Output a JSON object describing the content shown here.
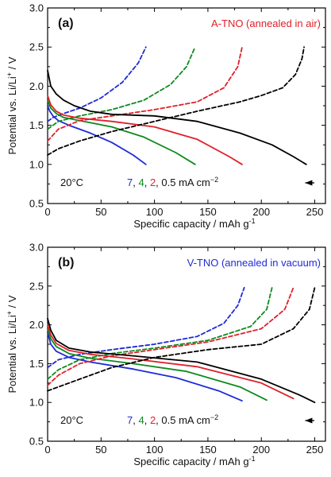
{
  "colors": {
    "black": "#000000",
    "blue": "#1f2bd8",
    "green": "#0e8a1e",
    "red": "#e0202a"
  },
  "chart_data": [
    {
      "type": "line",
      "panel_label": "(a)",
      "title": "A-TNO (annealed in air)",
      "title_color": "#e0202a",
      "xlabel": "Specific capacity / mAh g",
      "xlabel_sup": "-1",
      "ylabel": "Potential vs. Li/Li",
      "ylabel_sup": "+",
      "ylabel_suffix": " / V",
      "xlim": [
        0,
        260
      ],
      "ylim": [
        0.5,
        3.0
      ],
      "xticks": [
        0,
        50,
        100,
        150,
        200,
        250
      ],
      "yticks": [
        0.5,
        1.0,
        1.5,
        2.0,
        2.5,
        3.0
      ],
      "temperature": "20°C",
      "rate_labels": [
        "7",
        "4",
        "2",
        "0.5 mA cm"
      ],
      "rate_sup": "−2",
      "series": [
        {
          "color": "blue",
          "style": "solid",
          "x": [
            0,
            2,
            5,
            10,
            20,
            40,
            60,
            80,
            92
          ],
          "y": [
            1.75,
            1.68,
            1.62,
            1.56,
            1.5,
            1.4,
            1.28,
            1.12,
            1.0
          ]
        },
        {
          "color": "blue",
          "style": "dashed",
          "x": [
            0,
            5,
            15,
            30,
            50,
            70,
            85,
            92
          ],
          "y": [
            1.55,
            1.6,
            1.65,
            1.72,
            1.85,
            2.05,
            2.3,
            2.5
          ]
        },
        {
          "color": "green",
          "style": "solid",
          "x": [
            0,
            3,
            8,
            15,
            30,
            60,
            90,
            120,
            138
          ],
          "y": [
            1.82,
            1.72,
            1.65,
            1.6,
            1.56,
            1.48,
            1.35,
            1.15,
            1.0
          ]
        },
        {
          "color": "green",
          "style": "dashed",
          "x": [
            0,
            10,
            30,
            60,
            90,
            115,
            130,
            138
          ],
          "y": [
            1.45,
            1.55,
            1.62,
            1.7,
            1.82,
            2.02,
            2.25,
            2.5
          ]
        },
        {
          "color": "red",
          "style": "solid",
          "x": [
            0,
            3,
            8,
            15,
            30,
            60,
            100,
            140,
            170,
            182
          ],
          "y": [
            1.88,
            1.76,
            1.68,
            1.63,
            1.59,
            1.55,
            1.48,
            1.32,
            1.1,
            1.0
          ]
        },
        {
          "color": "red",
          "style": "dashed",
          "x": [
            0,
            10,
            30,
            60,
            100,
            140,
            165,
            178,
            182
          ],
          "y": [
            1.3,
            1.45,
            1.56,
            1.62,
            1.7,
            1.8,
            1.98,
            2.25,
            2.5
          ]
        },
        {
          "color": "black",
          "style": "solid",
          "x": [
            0,
            3,
            8,
            15,
            25,
            40,
            60,
            100,
            140,
            180,
            210,
            230,
            242
          ],
          "y": [
            2.2,
            2.0,
            1.9,
            1.82,
            1.75,
            1.68,
            1.64,
            1.62,
            1.55,
            1.4,
            1.25,
            1.1,
            1.0
          ]
        },
        {
          "color": "black",
          "style": "dashed",
          "x": [
            0,
            10,
            30,
            60,
            100,
            140,
            180,
            200,
            220,
            232,
            238,
            240
          ],
          "y": [
            1.12,
            1.2,
            1.3,
            1.42,
            1.55,
            1.68,
            1.8,
            1.88,
            1.98,
            2.15,
            2.35,
            2.5
          ]
        }
      ]
    },
    {
      "type": "line",
      "panel_label": "(b)",
      "title": "V-TNO (annealed in vacuum)",
      "title_color": "#1f2bd8",
      "xlabel": "Specific capacity / mAh g",
      "xlabel_sup": "-1",
      "ylabel": "Potential vs. Li/Li",
      "ylabel_sup": "+",
      "ylabel_suffix": " / V",
      "xlim": [
        0,
        260
      ],
      "ylim": [
        0.5,
        3.0
      ],
      "xticks": [
        0,
        50,
        100,
        150,
        200,
        250
      ],
      "yticks": [
        0.5,
        1.0,
        1.5,
        2.0,
        2.5,
        3.0
      ],
      "temperature": "20°C",
      "rate_labels": [
        "7",
        "4",
        "2",
        "0.5 mA cm"
      ],
      "rate_sup": "−2",
      "series": [
        {
          "color": "blue",
          "style": "solid",
          "x": [
            0,
            3,
            8,
            20,
            40,
            80,
            120,
            160,
            182
          ],
          "y": [
            1.9,
            1.75,
            1.66,
            1.58,
            1.52,
            1.43,
            1.32,
            1.15,
            1.02
          ]
        },
        {
          "color": "blue",
          "style": "dashed",
          "x": [
            0,
            10,
            30,
            60,
            100,
            140,
            165,
            178,
            184
          ],
          "y": [
            1.45,
            1.55,
            1.62,
            1.68,
            1.75,
            1.85,
            2.02,
            2.25,
            2.48
          ]
        },
        {
          "color": "green",
          "style": "solid",
          "x": [
            0,
            3,
            8,
            20,
            40,
            80,
            130,
            180,
            205
          ],
          "y": [
            1.95,
            1.82,
            1.72,
            1.63,
            1.57,
            1.5,
            1.4,
            1.2,
            1.03
          ]
        },
        {
          "color": "green",
          "style": "dashed",
          "x": [
            0,
            10,
            30,
            60,
            100,
            150,
            190,
            205,
            210
          ],
          "y": [
            1.3,
            1.42,
            1.55,
            1.63,
            1.7,
            1.8,
            1.98,
            2.2,
            2.48
          ]
        },
        {
          "color": "red",
          "style": "solid",
          "x": [
            0,
            3,
            8,
            20,
            40,
            80,
            140,
            200,
            230
          ],
          "y": [
            2.0,
            1.87,
            1.76,
            1.67,
            1.62,
            1.56,
            1.46,
            1.25,
            1.05
          ]
        },
        {
          "color": "red",
          "style": "dashed",
          "x": [
            0,
            10,
            30,
            60,
            100,
            150,
            200,
            222,
            230
          ],
          "y": [
            1.22,
            1.35,
            1.5,
            1.6,
            1.68,
            1.78,
            1.95,
            2.2,
            2.48
          ]
        },
        {
          "color": "black",
          "style": "solid",
          "x": [
            0,
            3,
            8,
            20,
            40,
            80,
            140,
            200,
            235,
            250
          ],
          "y": [
            2.08,
            1.93,
            1.8,
            1.7,
            1.65,
            1.6,
            1.52,
            1.3,
            1.1,
            1.0
          ]
        },
        {
          "color": "black",
          "style": "dashed",
          "x": [
            0,
            10,
            30,
            60,
            100,
            150,
            200,
            230,
            245,
            250
          ],
          "y": [
            1.15,
            1.2,
            1.3,
            1.45,
            1.58,
            1.68,
            1.75,
            1.95,
            2.2,
            2.48
          ]
        }
      ]
    }
  ]
}
